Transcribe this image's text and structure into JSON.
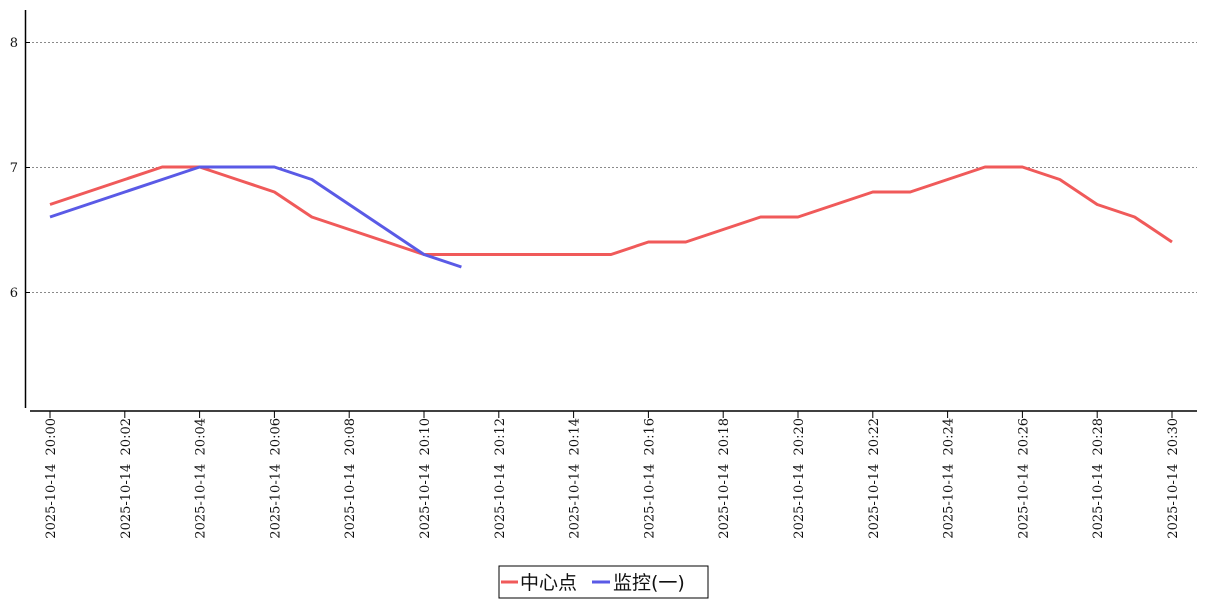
{
  "chart_data": {
    "type": "line",
    "title": "",
    "xlabel": "",
    "ylabel": "",
    "x": [
      "2025-10-14 20:00",
      "2025-10-14 20:01",
      "2025-10-14 20:02",
      "2025-10-14 20:03",
      "2025-10-14 20:04",
      "2025-10-14 20:05",
      "2025-10-14 20:06",
      "2025-10-14 20:07",
      "2025-10-14 20:08",
      "2025-10-14 20:09",
      "2025-10-14 20:10",
      "2025-10-14 20:11",
      "2025-10-14 20:12",
      "2025-10-14 20:13",
      "2025-10-14 20:14",
      "2025-10-14 20:15",
      "2025-10-14 20:16",
      "2025-10-14 20:17",
      "2025-10-14 20:18",
      "2025-10-14 20:19",
      "2025-10-14 20:20",
      "2025-10-14 20:21",
      "2025-10-14 20:22",
      "2025-10-14 20:23",
      "2025-10-14 20:24",
      "2025-10-14 20:25",
      "2025-10-14 20:26",
      "2025-10-14 20:27",
      "2025-10-14 20:28",
      "2025-10-14 20:29",
      "2025-10-14 20:30"
    ],
    "x_tick_labels": [
      "2025-10-14  20:00",
      "2025-10-14  20:02",
      "2025-10-14  20:04",
      "2025-10-14  20:06",
      "2025-10-14  20:08",
      "2025-10-14  20:10",
      "2025-10-14  20:12",
      "2025-10-14  20:14",
      "2025-10-14  20:16",
      "2025-10-14  20:18",
      "2025-10-14  20:20",
      "2025-10-14  20:22",
      "2025-10-14  20:24",
      "2025-10-14  20:26",
      "2025-10-14  20:28",
      "2025-10-14  20:30"
    ],
    "y_ticks": [
      6,
      7,
      8
    ],
    "y_tick_labels": [
      "6",
      "7",
      "8"
    ],
    "ylim": [
      4.6,
      8.3
    ],
    "grid": "horizontal dashed",
    "legend_position": "bottom-center",
    "series": [
      {
        "name": "中心点",
        "color": "#f05a5a",
        "values": [
          6.7,
          6.8,
          6.9,
          7.0,
          7.0,
          6.9,
          6.8,
          6.6,
          6.5,
          6.4,
          6.3,
          6.3,
          6.3,
          6.3,
          6.3,
          6.3,
          6.4,
          6.4,
          6.5,
          6.6,
          6.6,
          6.7,
          6.8,
          6.8,
          6.9,
          7.0,
          7.0,
          6.9,
          6.7,
          6.6,
          6.4
        ]
      },
      {
        "name": "监控(一)",
        "color": "#5a5ae6",
        "values": [
          6.6,
          6.7,
          6.8,
          6.9,
          7.0,
          7.0,
          7.0,
          6.9,
          6.7,
          6.5,
          6.3,
          6.2,
          null,
          null,
          null,
          null,
          null,
          null,
          null,
          null,
          null,
          null,
          null,
          null,
          null,
          null,
          null,
          null,
          null,
          null,
          null
        ]
      }
    ]
  }
}
